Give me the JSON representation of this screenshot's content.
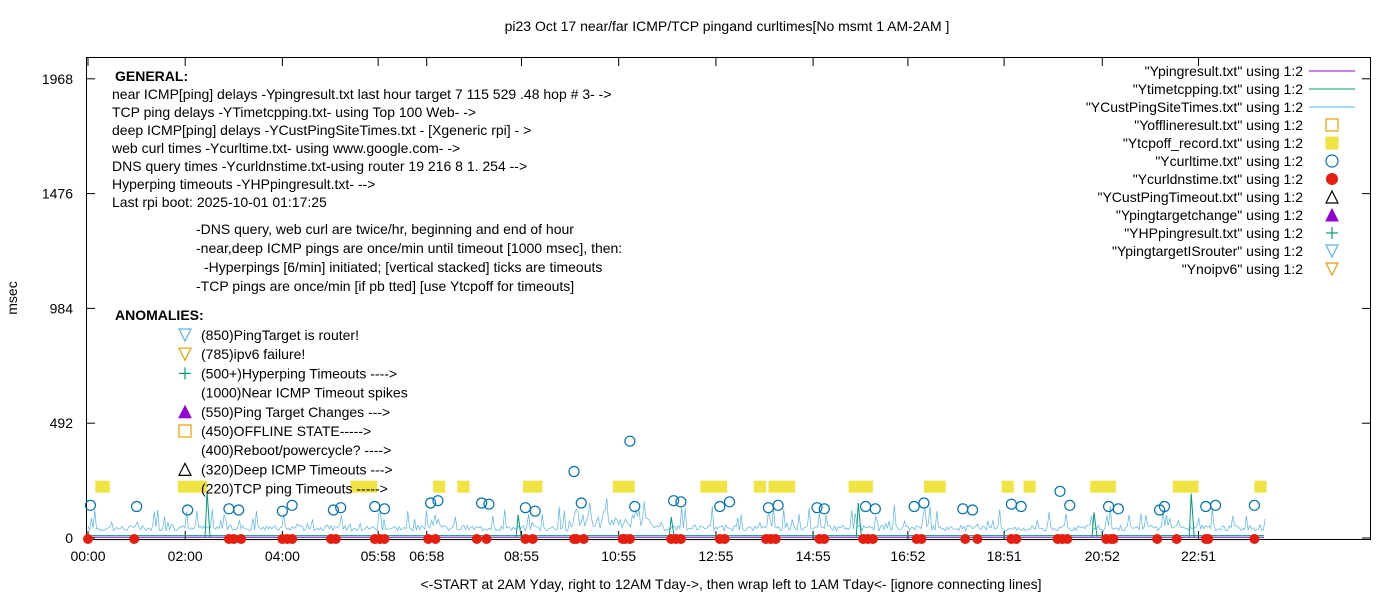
{
  "chart_data": {
    "type": "scatter",
    "title": "pi23 Oct 17  near/far ICMP/TCP pingand curltimes[No  msmt 1 AM-2AM ]",
    "ylabel": "msec",
    "xlabel": "<-START at 2AM Yday, right to 12AM Tday->, then wrap left to 1AM Tday<- [ignore connecting lines]",
    "ylim": [
      0,
      2100
    ],
    "yticks": [
      "1968",
      "1476",
      "984",
      "492",
      "0"
    ],
    "ytick_values": [
      1968,
      1476,
      984,
      492,
      0
    ],
    "xticks": [
      "00:00",
      "02:00",
      "04:00",
      "05:58",
      "06:58",
      "08:55",
      "10:55",
      "12:55",
      "14:55",
      "16:52",
      "18:51",
      "20:52",
      "22:51"
    ],
    "xtick_hours": [
      0,
      2,
      4,
      5.97,
      6.97,
      8.92,
      10.92,
      12.92,
      14.92,
      16.87,
      18.85,
      20.87,
      22.85
    ],
    "xlim_hours": [
      0,
      26.6
    ],
    "grid": false,
    "legend_position": "top-right",
    "legend": [
      {
        "label": "\"Ypingresult.txt\" using 1:2",
        "color": "#9400d3",
        "symbol": "line"
      },
      {
        "label": "\"Ytimetcpping.txt\" using 1:2",
        "color": "#009e73",
        "symbol": "line"
      },
      {
        "label": "\"YCustPingSiteTimes.txt\" using 1:2",
        "color": "#56b4e9",
        "symbol": "line"
      },
      {
        "label": "\"Yofflineresult.txt\" using 1:2",
        "color": "#e69f00",
        "symbol": "square-open"
      },
      {
        "label": "\"Ytcpoff_record.txt\" using 1:2",
        "color": "#f0e442",
        "symbol": "square-filled"
      },
      {
        "label": "\"Ycurltime.txt\" using 1:2",
        "color": "#0072b2",
        "symbol": "circle-open"
      },
      {
        "label": "\"Ycurldnstime.txt\" using 1:2",
        "color": "#e51e10",
        "symbol": "circle-filled"
      },
      {
        "label": "\"YCustPingTimeout.txt\" using 1:2",
        "color": "#000000",
        "symbol": "triangle-open"
      },
      {
        "label": "\"Ypingtargetchange\" using 1:2",
        "color": "#9400d3",
        "symbol": "triangle-filled"
      },
      {
        "label": "\"YHPpingresult.txt\" using 1:2",
        "color": "#009e73",
        "symbol": "plus"
      },
      {
        "label": "\"YpingtargetISrouter\" using 1:2",
        "color": "#56b4e9",
        "symbol": "triangle-down-open"
      },
      {
        "label": "\"Ynoipv6\" using 1:2",
        "color": "#e69f00",
        "symbol": "triangle-down-open"
      }
    ],
    "general_heading": "GENERAL:",
    "general_lines": [
      "near ICMP[ping] delays -Ypingresult.txt last hour target 7 115 529 .48 hop # 3- ->",
      "TCP ping delays -YTimetcpping.txt- using Top 100 Web- ->",
      "deep ICMP[ping] delays -YCustPingSiteTimes.txt - [Xgeneric rpi] - >",
      "web curl times -Ycurltime.txt- using www.google.com- ->",
      "DNS query times -Ycurldnstime.txt-using router 19 216 8 1. 254 -->",
      "Hyperping timeouts -YHPpingresult.txt- -->",
      "Last rpi boot: 2025-10-01 01:17:25"
    ],
    "general_notes": [
      "-DNS query, web curl are twice/hr, beginning and end of hour",
      "-near,deep ICMP pings are once/min until timeout [1000 msec], then:",
      "-Hyperpings [6/min] initiated; [vertical stacked] ticks are timeouts",
      "-TCP pings are once/min [if pb tted] [use Ytcpoff for timeouts]"
    ],
    "anomalies_heading": "ANOMALIES:",
    "anomalies": [
      {
        "text": "(850)PingTarget is router!",
        "marker": "triangle-down-open",
        "color": "#56b4e9"
      },
      {
        "text": "(785)ipv6 failure!",
        "marker": "triangle-down-open",
        "color": "#e69f00"
      },
      {
        "text": "(500+)Hyperping Timeouts ---->",
        "marker": "plus",
        "color": "#009e73"
      },
      {
        "text": "(1000)Near ICMP Timeout spikes",
        "marker": "none",
        "color": "#000000"
      },
      {
        "text": "(550)Ping Target Changes --->",
        "marker": "triangle-filled",
        "color": "#9400d3"
      },
      {
        "text": "(450)OFFLINE STATE----->",
        "marker": "square-open",
        "color": "#e69f00"
      },
      {
        "text": "(400)Reboot/powercycle? ---->",
        "marker": "none",
        "color": "#000000"
      },
      {
        "text": "(320)Deep ICMP Timeouts --->",
        "marker": "triangle-open",
        "color": "#000000"
      },
      {
        "text": "(220)TCP ping Timeouts ----->",
        "marker": "none",
        "color": "#000000"
      }
    ],
    "tcp_timeout_y": 220,
    "tcp_timeouts_hours": [
      [
        0.15,
        0.45
      ],
      [
        1.85,
        2.45
      ],
      [
        5.4,
        5.95
      ],
      [
        7.1,
        7.35
      ],
      [
        7.6,
        7.85
      ],
      [
        8.95,
        9.35
      ],
      [
        10.8,
        11.25
      ],
      [
        12.6,
        13.15
      ],
      [
        13.7,
        13.95
      ],
      [
        14.0,
        14.55
      ],
      [
        15.65,
        16.15
      ],
      [
        17.2,
        17.65
      ],
      [
        18.8,
        19.05
      ],
      [
        19.25,
        19.5
      ],
      [
        20.62,
        21.15
      ],
      [
        22.32,
        22.85
      ],
      [
        24.0,
        24.25
      ]
    ],
    "curl_points": [
      [
        0.05,
        140
      ],
      [
        1.0,
        135
      ],
      [
        2.05,
        120
      ],
      [
        2.9,
        125
      ],
      [
        3.1,
        120
      ],
      [
        4.0,
        115
      ],
      [
        4.2,
        140
      ],
      [
        5.05,
        120
      ],
      [
        5.2,
        130
      ],
      [
        5.9,
        135
      ],
      [
        6.1,
        125
      ],
      [
        7.05,
        150
      ],
      [
        7.2,
        160
      ],
      [
        8.1,
        150
      ],
      [
        8.25,
        145
      ],
      [
        9.0,
        130
      ],
      [
        9.2,
        115
      ],
      [
        10.0,
        285
      ],
      [
        10.15,
        150
      ],
      [
        11.15,
        415
      ],
      [
        11.25,
        135
      ],
      [
        12.05,
        160
      ],
      [
        12.2,
        155
      ],
      [
        13.0,
        135
      ],
      [
        13.2,
        155
      ],
      [
        14.0,
        130
      ],
      [
        14.2,
        140
      ],
      [
        15.0,
        130
      ],
      [
        15.15,
        125
      ],
      [
        16.0,
        135
      ],
      [
        16.2,
        125
      ],
      [
        17.0,
        135
      ],
      [
        17.2,
        150
      ],
      [
        18.0,
        125
      ],
      [
        18.2,
        120
      ],
      [
        19.0,
        145
      ],
      [
        19.2,
        135
      ],
      [
        20.0,
        200
      ],
      [
        20.2,
        140
      ],
      [
        21.0,
        135
      ],
      [
        21.2,
        125
      ],
      [
        22.05,
        120
      ],
      [
        22.15,
        135
      ],
      [
        23.0,
        135
      ],
      [
        23.2,
        140
      ],
      [
        24.0,
        140
      ]
    ],
    "dns_points": [
      0.0,
      0.95,
      2.9,
      3.0,
      3.15,
      4.0,
      4.1,
      4.2,
      5.0,
      5.1,
      5.9,
      6.0,
      6.1,
      7.0,
      7.15,
      8.0,
      8.2,
      9.0,
      9.15,
      10.0,
      10.05,
      10.2,
      11.0,
      11.05,
      11.15,
      12.0,
      12.1,
      12.2,
      13.0,
      13.1,
      13.95,
      14.05,
      14.15,
      15.05,
      15.15,
      15.95,
      16.05,
      16.15,
      17.05,
      17.15,
      18.05,
      18.3,
      19.0,
      19.1,
      19.95,
      20.05,
      20.15,
      20.95,
      21.05,
      21.1,
      22.0,
      22.4,
      23.0,
      23.05,
      24.0
    ],
    "tcp_line_hours": [
      0,
      24.2
    ],
    "tcp_line_y": 10,
    "cust_ping_base_y": 30,
    "tcp_spikes": [
      [
        2.45,
        200
      ],
      [
        15.85,
        150
      ],
      [
        22.7,
        190
      ],
      [
        20.7,
        110
      ],
      [
        8.85,
        100
      ],
      [
        12.0,
        90
      ]
    ]
  }
}
